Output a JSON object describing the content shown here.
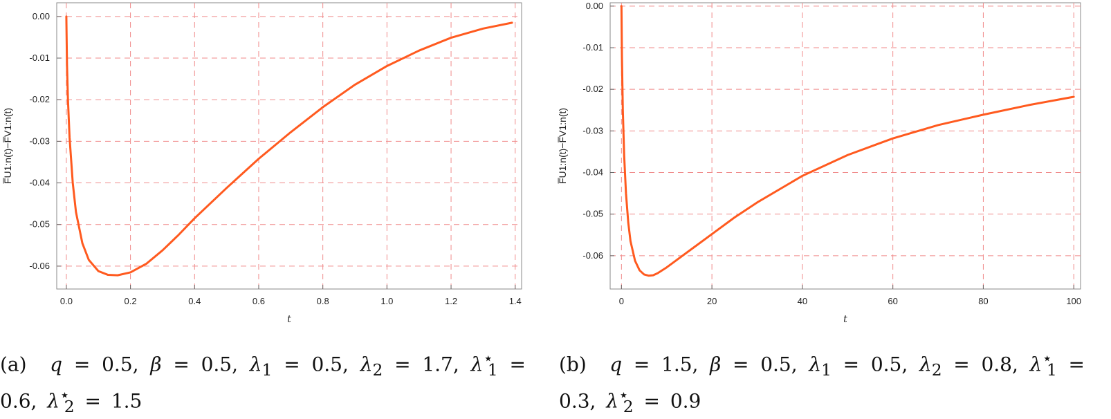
{
  "chart_data": [
    {
      "type": "line",
      "title": "",
      "xlabel": "t",
      "ylabel": "F̅U1:n(t)−F̅V1:n(t)",
      "xlim": [
        -0.03,
        1.42
      ],
      "ylim": [
        -0.0655,
        0.0033
      ],
      "xticks": [
        0.0,
        0.2,
        0.4,
        0.6,
        0.8,
        1.0,
        1.2,
        1.4
      ],
      "xtick_labels": [
        "0.0",
        "0.2",
        "0.4",
        "0.6",
        "0.8",
        "1.0",
        "1.2",
        "1.4"
      ],
      "yticks": [
        0.0,
        -0.01,
        -0.02,
        -0.03,
        -0.04,
        -0.05,
        -0.06
      ],
      "ytick_labels": [
        "0.00",
        "-0.01",
        "-0.02",
        "-0.03",
        "-0.04",
        "-0.05",
        "-0.06"
      ],
      "grid": true,
      "color": "#ff5a1f",
      "series": [
        {
          "x": [
            0.0,
            0.002,
            0.005,
            0.01,
            0.02,
            0.03,
            0.05,
            0.07,
            0.1,
            0.13,
            0.16,
            0.2,
            0.25,
            0.3,
            0.35,
            0.4,
            0.5,
            0.6,
            0.7,
            0.8,
            0.9,
            1.0,
            1.1,
            1.2,
            1.3,
            1.39
          ],
          "y": [
            0.0,
            -0.0115,
            -0.02,
            -0.029,
            -0.04,
            -0.047,
            -0.0545,
            -0.0585,
            -0.0612,
            -0.0621,
            -0.0622,
            -0.0615,
            -0.0594,
            -0.0562,
            -0.0525,
            -0.0485,
            -0.0412,
            -0.0342,
            -0.0278,
            -0.0218,
            -0.0164,
            -0.0119,
            -0.0082,
            -0.0051,
            -0.0029,
            -0.0015
          ]
        }
      ],
      "caption": "(a)  q = 0.5, β = 0.5, λ1 = 0.5, λ2 = 1.7, λ1⋆ = 0.6, λ2⋆ = 1.5"
    },
    {
      "type": "line",
      "title": "",
      "xlabel": "t",
      "ylabel": "F̅U1:n(t)−F̅V1:n(t)",
      "xlim": [
        -2.5,
        101.5
      ],
      "ylim": [
        -0.068,
        0.0008
      ],
      "xticks": [
        0,
        20,
        40,
        60,
        80,
        100
      ],
      "xtick_labels": [
        "0",
        "20",
        "40",
        "60",
        "80",
        "100"
      ],
      "yticks": [
        0.0,
        -0.01,
        -0.02,
        -0.03,
        -0.04,
        -0.05,
        -0.06
      ],
      "ytick_labels": [
        "0.00",
        "-0.01",
        "-0.02",
        "-0.03",
        "-0.04",
        "-0.05",
        "-0.06"
      ],
      "grid": true,
      "color": "#ff5a1f",
      "series": [
        {
          "x": [
            0.0,
            0.1,
            0.3,
            0.6,
            1.0,
            1.5,
            2.0,
            3.0,
            4.0,
            5.0,
            6.0,
            7.0,
            8.0,
            10.0,
            12.0,
            15.0,
            20.0,
            25.0,
            30.0,
            40.0,
            50.0,
            60.0,
            70.0,
            80.0,
            90.0,
            100.0
          ],
          "y": [
            0.0,
            -0.012,
            -0.025,
            -0.036,
            -0.045,
            -0.052,
            -0.0565,
            -0.0612,
            -0.0635,
            -0.0645,
            -0.0648,
            -0.0647,
            -0.0642,
            -0.0628,
            -0.0612,
            -0.0588,
            -0.0548,
            -0.0508,
            -0.0472,
            -0.0408,
            -0.0358,
            -0.0318,
            -0.0286,
            -0.0261,
            -0.0238,
            -0.0218
          ]
        }
      ],
      "caption": "(b)  q = 1.5, β = 0.5, λ1 = 0.5, λ2 = 0.8, λ1⋆ = 0.3, λ2⋆ = 0.9"
    }
  ],
  "captions": {
    "a": {
      "label": "(a)",
      "q": "0.5",
      "beta": "0.5",
      "lambda1": "0.5",
      "lambda2": "1.7",
      "lambda1_star": "0.6",
      "lambda2_star": "1.5"
    },
    "b": {
      "label": "(b)",
      "q": "1.5",
      "beta": "0.5",
      "lambda1": "0.5",
      "lambda2": "0.8",
      "lambda1_star": "0.3",
      "lambda2_star": "0.9"
    }
  }
}
